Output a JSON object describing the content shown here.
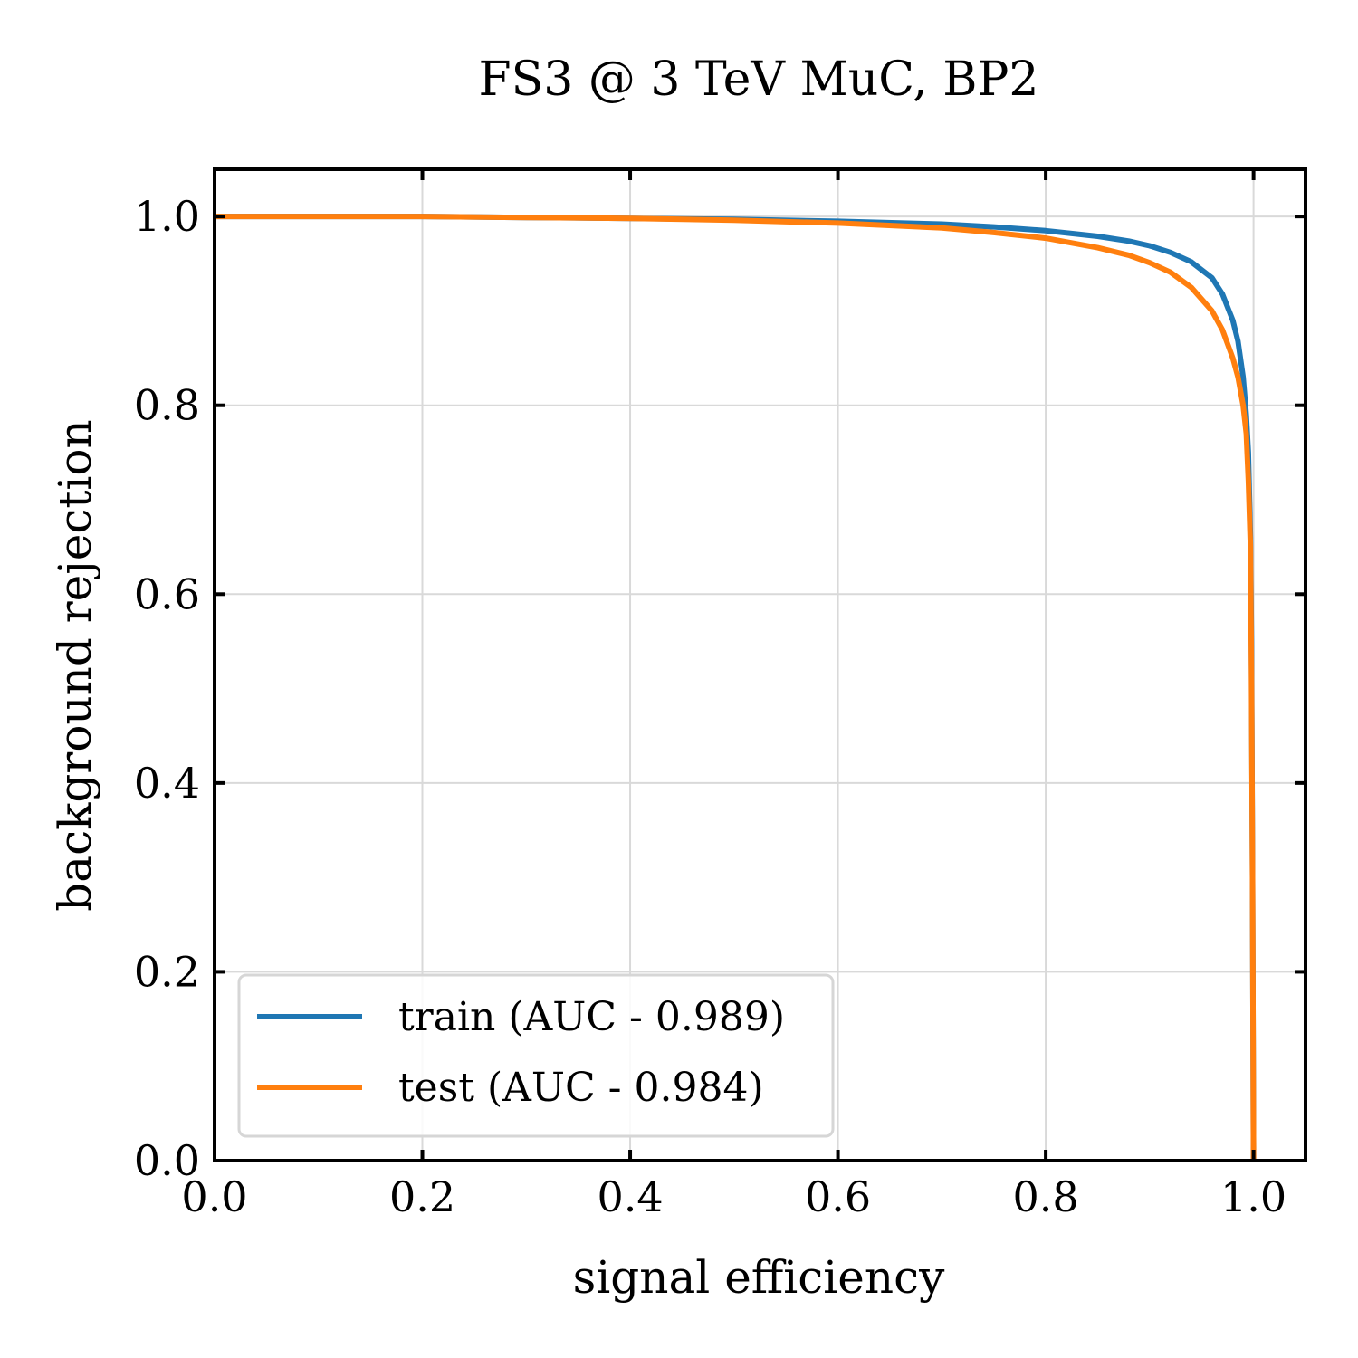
{
  "chart_data": {
    "type": "line",
    "title": "FS3 @ 3 TeV MuC, BP2",
    "xlabel": "signal efficiency",
    "ylabel": "background rejection",
    "xlim": [
      0.0,
      1.05
    ],
    "ylim": [
      0.0,
      1.05
    ],
    "xticks": [
      "0.0",
      "0.2",
      "0.4",
      "0.6",
      "0.8",
      "1.0"
    ],
    "yticks": [
      "0.0",
      "0.2",
      "0.4",
      "0.6",
      "0.8",
      "1.0"
    ],
    "grid": true,
    "legend_position": "lower-left",
    "series": [
      {
        "name": "train (AUC - 0.989)",
        "color": "#1f77b4",
        "x": [
          0.0,
          0.1,
          0.2,
          0.3,
          0.4,
          0.5,
          0.6,
          0.7,
          0.75,
          0.8,
          0.85,
          0.88,
          0.9,
          0.92,
          0.94,
          0.96,
          0.97,
          0.98,
          0.985,
          0.99,
          0.993,
          0.995,
          0.997,
          0.998,
          0.999,
          1.0
        ],
        "y": [
          1.0,
          1.0,
          1.0,
          0.999,
          0.998,
          0.997,
          0.995,
          0.992,
          0.989,
          0.985,
          0.979,
          0.974,
          0.969,
          0.962,
          0.952,
          0.935,
          0.918,
          0.89,
          0.868,
          0.83,
          0.79,
          0.75,
          0.66,
          0.55,
          0.3,
          0.0
        ]
      },
      {
        "name": "test (AUC - 0.984)",
        "color": "#ff7f0e",
        "x": [
          0.0,
          0.1,
          0.2,
          0.3,
          0.4,
          0.5,
          0.6,
          0.7,
          0.75,
          0.8,
          0.85,
          0.88,
          0.9,
          0.92,
          0.94,
          0.96,
          0.97,
          0.98,
          0.985,
          0.99,
          0.993,
          0.995,
          0.997,
          0.998,
          0.999,
          1.0
        ],
        "y": [
          1.0,
          1.0,
          1.0,
          0.999,
          0.998,
          0.996,
          0.993,
          0.988,
          0.983,
          0.977,
          0.967,
          0.959,
          0.951,
          0.941,
          0.925,
          0.9,
          0.88,
          0.85,
          0.83,
          0.8,
          0.77,
          0.72,
          0.65,
          0.52,
          0.3,
          0.0
        ]
      }
    ]
  }
}
